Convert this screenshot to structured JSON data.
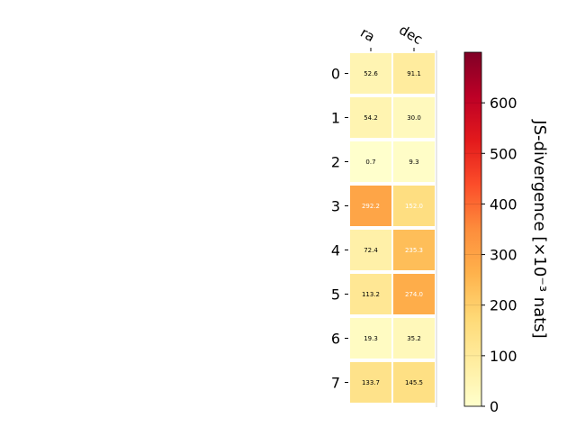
{
  "chart_data": {
    "type": "heatmap",
    "columns": [
      "ra",
      "dec"
    ],
    "rows": [
      "0",
      "1",
      "2",
      "3",
      "4",
      "5",
      "6",
      "7"
    ],
    "values": [
      [
        52.6,
        91.1
      ],
      [
        54.2,
        30.0
      ],
      [
        0.7,
        9.3
      ],
      [
        292.2,
        152.0
      ],
      [
        72.4,
        235.3
      ],
      [
        113.2,
        274.0
      ],
      [
        19.3,
        35.2
      ],
      [
        133.7,
        145.5
      ]
    ],
    "value_labels": [
      [
        "52.6",
        "91.1"
      ],
      [
        "54.2",
        "30.0"
      ],
      [
        "0.7",
        "9.3"
      ],
      [
        "292.2",
        "152.0"
      ],
      [
        "72.4",
        "235.3"
      ],
      [
        "113.2",
        "274.0"
      ],
      [
        "19.3",
        "35.2"
      ],
      [
        "133.7",
        "145.5"
      ]
    ],
    "colorbar": {
      "label": "JS-divergence [×10⁻³ nats]",
      "range": [
        0,
        700
      ],
      "ticks": [
        0,
        100,
        200,
        300,
        400,
        500,
        600
      ],
      "colormap": "YlOrRd"
    },
    "colormap_stops": [
      "#ffffcc",
      "#ffeda0",
      "#fed976",
      "#feb24c",
      "#fd8d3c",
      "#fc4e2a",
      "#e31a1c",
      "#bd0026",
      "#800026"
    ]
  }
}
